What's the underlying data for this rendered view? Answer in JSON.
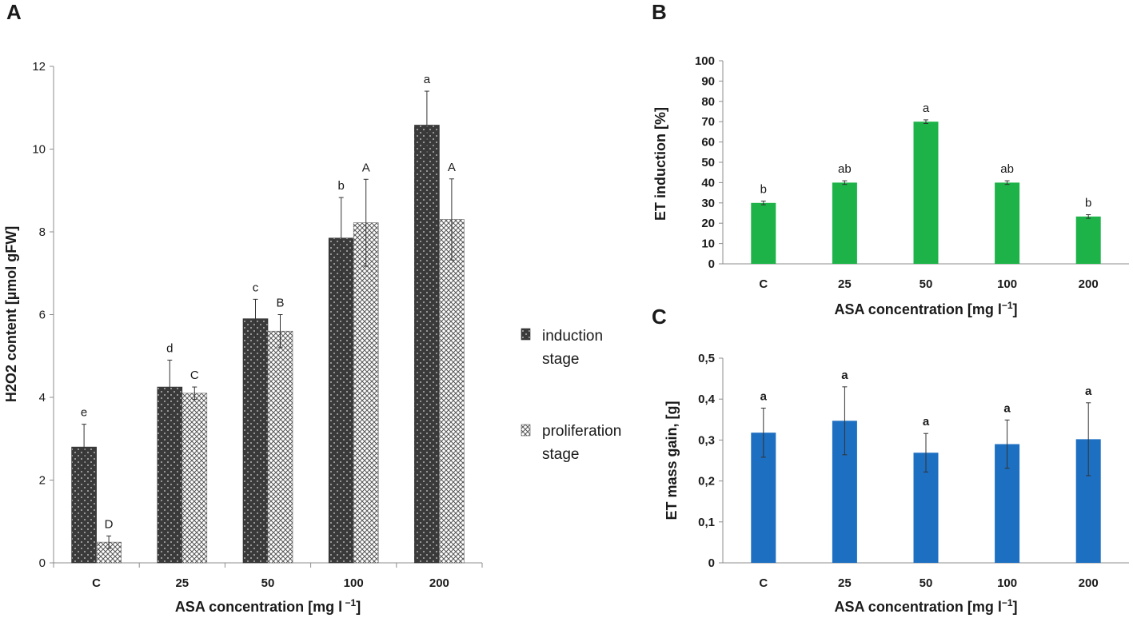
{
  "panels": {
    "A": "A",
    "B": "B",
    "C": "C"
  },
  "colors": {
    "induction": "#3a3a3a",
    "proliferation_bg": "#ffffff",
    "proliferation_hatch": "#555555",
    "et_induction": "#1db348",
    "et_mass": "#1d6fc1",
    "axis": "#8c8c8c",
    "error": "#333333"
  },
  "chart_data": [
    {
      "id": "A",
      "type": "bar",
      "title": "",
      "xlabel_main": "ASA concentration [mg l",
      "xlabel_sup": " −1",
      "xlabel_end": "]",
      "ylabel_main": "H2O2 content [µmol gFW]",
      "categories": [
        "C",
        "25",
        "50",
        "100",
        "200"
      ],
      "ylim": [
        0,
        12
      ],
      "yticks": [
        "0",
        "2",
        "4",
        "6",
        "8",
        "10",
        "12"
      ],
      "legend": {
        "position": "right",
        "entries": [
          "induction\nstage",
          "proliferation\nstage"
        ]
      },
      "series": [
        {
          "name": "induction stage",
          "values": [
            2.8,
            4.25,
            5.9,
            7.85,
            10.58
          ],
          "errors": [
            0.55,
            0.65,
            0.47,
            0.98,
            0.82
          ],
          "labels": [
            "e",
            "d",
            "c",
            "b",
            "a"
          ]
        },
        {
          "name": "proliferation stage",
          "values": [
            0.5,
            4.1,
            5.6,
            8.22,
            8.3
          ],
          "errors": [
            0.15,
            0.15,
            0.4,
            1.05,
            0.98
          ],
          "labels": [
            "D",
            "C",
            "B",
            "A",
            "A"
          ]
        }
      ]
    },
    {
      "id": "B",
      "type": "bar",
      "xlabel_main": "ASA concentration [mg l",
      "xlabel_sup": "−1",
      "xlabel_end": "]",
      "ylabel_main": "ET induction [%]",
      "categories": [
        "C",
        "25",
        "50",
        "100",
        "200"
      ],
      "ylim": [
        0,
        100
      ],
      "yticks": [
        "0",
        "10",
        "20",
        "30",
        "40",
        "50",
        "60",
        "70",
        "80",
        "90",
        "100"
      ],
      "series": [
        {
          "name": "ET induction",
          "values": [
            30,
            40,
            70,
            40,
            23.3
          ],
          "errors": [
            0.9,
            0.9,
            0.9,
            0.9,
            0.9
          ],
          "labels": [
            "b",
            "ab",
            "a",
            "ab",
            "b"
          ]
        }
      ]
    },
    {
      "id": "C",
      "type": "bar",
      "xlabel_main": "ASA concentration [mg l",
      "xlabel_sup": "−1",
      "xlabel_end": "]",
      "ylabel_main": "ET mass gain, [g]",
      "categories": [
        "C",
        "25",
        "50",
        "100",
        "200"
      ],
      "ylim": [
        0,
        0.5
      ],
      "yticks": [
        "0",
        "0,1",
        "0,2",
        "0,3",
        "0,4",
        "0,5"
      ],
      "series": [
        {
          "name": "ET mass gain",
          "values": [
            0.318,
            0.347,
            0.269,
            0.29,
            0.302
          ],
          "errors": [
            0.06,
            0.083,
            0.047,
            0.059,
            0.089
          ],
          "labels": [
            "a",
            "a",
            "a",
            "a",
            "a"
          ]
        }
      ]
    }
  ]
}
